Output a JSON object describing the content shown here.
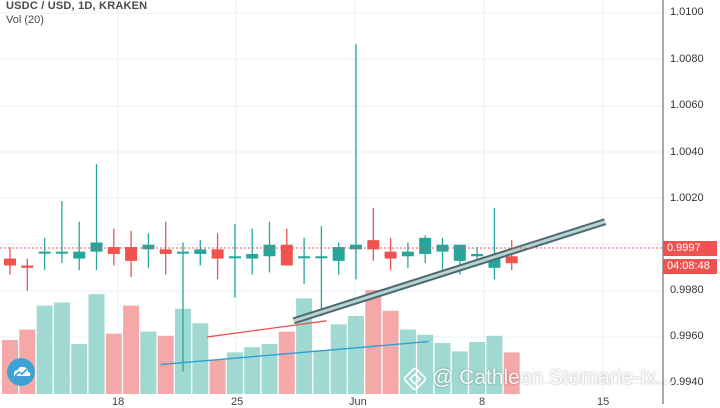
{
  "header": {
    "symbol": "USDC / USD, 1D, KRAKEN",
    "volume": "Vol (20)"
  },
  "price_axis": {
    "labels": [
      "1.0100",
      "1.0080",
      "1.0060",
      "1.0040",
      "1.0020",
      "0.9980",
      "0.9960",
      "0.9940"
    ],
    "last_price": "0.9997",
    "countdown": "04:08:48"
  },
  "time_axis": {
    "labels": [
      "18",
      "25",
      "Jun",
      "8",
      "15"
    ]
  },
  "watermark": {
    "text": "@ Cathleen Stemarie-Ix..."
  },
  "colors": {
    "up": "#26a69a",
    "down": "#ef5350",
    "vol_up": "#9fd9d2",
    "vol_down": "#f4a9a8",
    "grid": "#e6f2f7",
    "axis_border": "#555555",
    "price_line": "#ef5350"
  },
  "icons": {
    "logo": "tradingview-cloud-icon",
    "watermark": "binance-diamond-icon"
  },
  "chart_data": {
    "type": "candlestick",
    "y_range": [
      0.9935,
      1.0108
    ],
    "candles": [
      {
        "o": 0.9999,
        "h": 1.0004,
        "l": 0.9992,
        "c": 0.9996
      },
      {
        "o": 0.9996,
        "h": 0.9999,
        "l": 0.9985,
        "c": 0.9995
      },
      {
        "o": 1.0002,
        "h": 1.0008,
        "l": 0.9994,
        "c": 1.0002
      },
      {
        "o": 1.0002,
        "h": 1.0024,
        "l": 0.9997,
        "c": 1.0002
      },
      {
        "o": 0.9999,
        "h": 1.0015,
        "l": 0.9994,
        "c": 1.0002
      },
      {
        "o": 1.0002,
        "h": 1.004,
        "l": 0.9994,
        "c": 1.0006
      },
      {
        "o": 1.0004,
        "h": 1.0012,
        "l": 0.9996,
        "c": 1.0001
      },
      {
        "o": 1.0004,
        "h": 1.0011,
        "l": 0.9991,
        "c": 0.9998
      },
      {
        "o": 1.0003,
        "h": 1.001,
        "l": 0.9995,
        "c": 1.0005
      },
      {
        "o": 1.0003,
        "h": 1.0015,
        "l": 0.9992,
        "c": 1.0001
      },
      {
        "o": 1.0002,
        "h": 1.0006,
        "l": 0.995,
        "c": 1.0002
      },
      {
        "o": 1.0001,
        "h": 1.0007,
        "l": 0.9996,
        "c": 1.0003
      },
      {
        "o": 1.0003,
        "h": 1.001,
        "l": 0.999,
        "c": 0.9999
      },
      {
        "o": 1.0,
        "h": 1.0014,
        "l": 0.9982,
        "c": 1.0
      },
      {
        "o": 0.9999,
        "h": 1.0012,
        "l": 0.9992,
        "c": 1.0001
      },
      {
        "o": 1.0,
        "h": 1.0015,
        "l": 0.9993,
        "c": 1.0005
      },
      {
        "o": 1.0005,
        "h": 1.0012,
        "l": 0.9997,
        "c": 0.9996
      },
      {
        "o": 1.0,
        "h": 1.0008,
        "l": 0.9988,
        "c": 1.0
      },
      {
        "o": 1.0,
        "h": 1.0013,
        "l": 0.9974,
        "c": 1.0
      },
      {
        "o": 0.9998,
        "h": 1.0006,
        "l": 0.9992,
        "c": 1.0004
      },
      {
        "o": 1.0003,
        "h": 1.0092,
        "l": 0.999,
        "c": 1.0005
      },
      {
        "o": 1.0007,
        "h": 1.0021,
        "l": 0.9998,
        "c": 1.0003
      },
      {
        "o": 1.0002,
        "h": 1.0008,
        "l": 0.9994,
        "c": 0.9999
      },
      {
        "o": 1.0,
        "h": 1.0006,
        "l": 0.9995,
        "c": 1.0002
      },
      {
        "o": 1.0001,
        "h": 1.0009,
        "l": 0.9997,
        "c": 1.0008
      },
      {
        "o": 1.0002,
        "h": 1.0008,
        "l": 0.9993,
        "c": 1.0005
      },
      {
        "o": 0.9998,
        "h": 1.0005,
        "l": 0.9992,
        "c": 1.0005
      },
      {
        "o": 1.0,
        "h": 1.0004,
        "l": 0.9996,
        "c": 1.0001
      },
      {
        "o": 0.9995,
        "h": 1.0021,
        "l": 0.999,
        "c": 1.0
      },
      {
        "o": 1.0,
        "h": 1.0007,
        "l": 0.9994,
        "c": 0.9997
      }
    ],
    "volume_rel": [
      0.52,
      0.62,
      0.85,
      0.88,
      0.48,
      0.96,
      0.58,
      0.85,
      0.6,
      0.56,
      0.82,
      0.68,
      0.33,
      0.4,
      0.45,
      0.48,
      0.6,
      0.92,
      0.42,
      0.67,
      0.75,
      1.0,
      0.8,
      0.62,
      0.57,
      0.49,
      0.41,
      0.5,
      0.56,
      0.4
    ],
    "trendlines": [
      {
        "color": "#7a9aa0",
        "from": [
          16.4,
          0.9972
        ],
        "to": [
          34.4,
          1.0015
        ],
        "style": "thick"
      },
      {
        "color": "#ef5350",
        "from": [
          11.4,
          0.9965
        ],
        "to": [
          18.3,
          0.9972
        ],
        "pane": "volume"
      },
      {
        "color": "#2a9fd6",
        "from": [
          8.7,
          0.9953
        ],
        "to": [
          24.2,
          0.9963
        ],
        "pane": "volume"
      }
    ]
  }
}
